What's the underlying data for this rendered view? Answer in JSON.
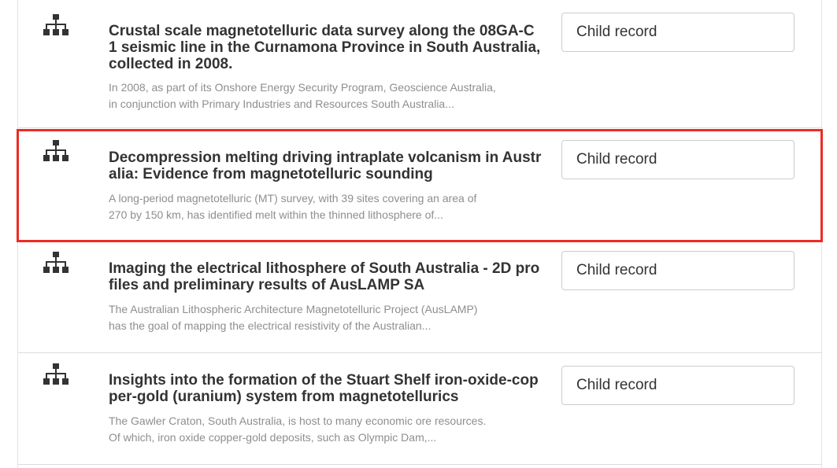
{
  "records": [
    {
      "title": "Crustal scale magnetotelluric data survey along the 08GA-C1 seismic line in the Curnamona Province in South Australia, collected in 2008.",
      "description_line1": "In 2008, as part of its Onshore Energy Security Program, Geoscience Australia,",
      "description_line2": "in conjunction with Primary Industries and Resources South Australia...",
      "button_label": "Child record",
      "icon": "hierarchy-icon"
    },
    {
      "title": "Decompression melting driving intraplate volcanism in Australia: Evidence from magnetotelluric sounding",
      "description_line1": "A long-period magnetotelluric (MT) survey, with 39 sites covering an area of",
      "description_line2": "270 by 150 km, has identified melt within the thinned lithosphere of...",
      "button_label": "Child record",
      "icon": "hierarchy-icon"
    },
    {
      "title": "Imaging the electrical lithosphere of South Australia - 2D profiles and preliminary results of AusLAMP SA",
      "description_line1": "The Australian Lithospheric Architecture Magnetotelluric Project (AusLAMP)",
      "description_line2": "has the goal of mapping the electrical resistivity of the Australian...",
      "button_label": "Child record",
      "icon": "hierarchy-icon"
    },
    {
      "title": "Insights into the formation of the Stuart Shelf iron-oxide-copper-gold (uranium) system from magnetotellurics",
      "description_line1": "The Gawler Craton, South Australia, is host to many economic ore resources.",
      "description_line2": "Of which, iron oxide copper-gold deposits, such as Olympic Dam,...",
      "button_label": "Child record",
      "icon": "hierarchy-icon"
    }
  ],
  "colors": {
    "highlight": "#ee2a24",
    "title": "#333333",
    "description": "#8e8e8e",
    "icon": "#333333"
  }
}
